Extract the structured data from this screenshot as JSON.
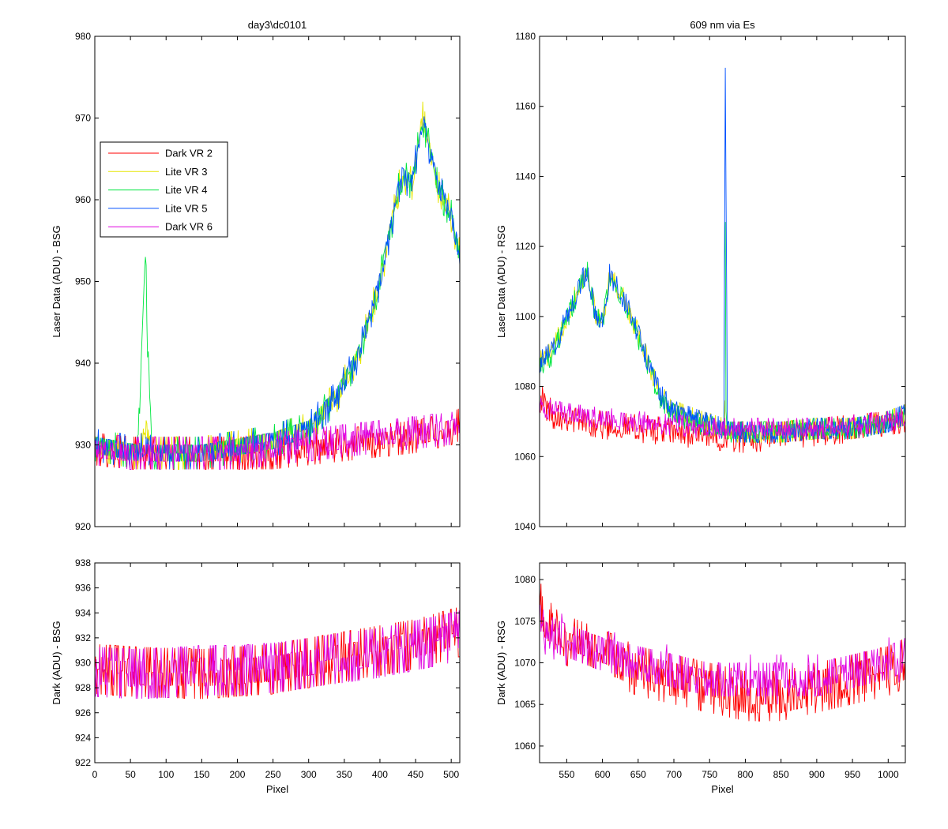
{
  "figure": {
    "colors": {
      "Dark VR 2": "#ff0000",
      "Lite VR 3": "#e6e600",
      "Lite VR 4": "#00e640",
      "Lite VR 5": "#0050ff",
      "Dark VR 6": "#e000e0"
    }
  },
  "chart_data": [
    {
      "id": "top-left",
      "type": "line",
      "title": "day3\\dc0101",
      "xlabel": "",
      "ylabel": "Laser Data (ADU) - BSG",
      "xlim": [
        0,
        512
      ],
      "ylim": [
        920,
        980
      ],
      "xticks": [
        0,
        50,
        100,
        150,
        200,
        250,
        300,
        350,
        400,
        450,
        500
      ],
      "xtick_labels_shown": false,
      "yticks": [
        920,
        930,
        940,
        950,
        960,
        970,
        980
      ],
      "legend": {
        "placement": "upper-left",
        "entries": [
          "Dark VR 2",
          "Lite VR 3",
          "Lite VR 4",
          "Lite VR 5",
          "Dark VR 6"
        ]
      },
      "series": [
        {
          "name": "Dark VR 2",
          "x": [
            0,
            50,
            100,
            150,
            200,
            250,
            300,
            350,
            400,
            450,
            500,
            512
          ],
          "y": [
            929.5,
            929,
            929,
            929,
            929,
            929,
            929.5,
            930,
            930.5,
            931,
            932,
            932.5
          ],
          "noise": 2
        },
        {
          "name": "Lite VR 3",
          "x": [
            0,
            60,
            72,
            80,
            150,
            250,
            300,
            340,
            370,
            400,
            430,
            445,
            460,
            480,
            500,
            512
          ],
          "y": [
            930,
            929,
            932,
            929,
            929,
            930.5,
            932,
            936,
            941,
            950,
            963,
            962,
            970,
            962,
            958,
            953
          ],
          "noise": 1.7
        },
        {
          "name": "Lite VR 4",
          "x": [
            0,
            60,
            71,
            72,
            73,
            80,
            150,
            250,
            300,
            340,
            370,
            400,
            430,
            445,
            460,
            480,
            500,
            512
          ],
          "y": [
            930,
            929,
            954,
            951,
            945,
            929,
            929,
            930.5,
            932,
            936,
            941,
            950,
            963,
            962,
            970,
            962,
            958,
            953
          ],
          "noise": 1.7
        },
        {
          "name": "Lite VR 5",
          "x": [
            0,
            60,
            72,
            80,
            150,
            250,
            300,
            340,
            370,
            400,
            430,
            445,
            460,
            480,
            500,
            512
          ],
          "y": [
            930,
            929,
            930,
            929,
            929,
            930.5,
            932,
            936,
            941,
            950,
            963,
            962,
            970,
            962,
            958,
            953
          ],
          "noise": 1.7
        },
        {
          "name": "Dark VR 6",
          "x": [
            0,
            50,
            100,
            150,
            200,
            250,
            300,
            350,
            400,
            450,
            500,
            512
          ],
          "y": [
            929.5,
            929,
            929,
            929,
            929,
            929.5,
            930,
            930.5,
            931,
            931.5,
            932,
            932.5
          ],
          "noise": 2
        }
      ]
    },
    {
      "id": "top-right",
      "type": "line",
      "title": "609 nm via Es",
      "xlabel": "",
      "ylabel": "Laser Data (ADU) - RSG",
      "xlim": [
        512,
        1024
      ],
      "ylim": [
        1040,
        1180
      ],
      "xticks": [
        550,
        600,
        650,
        700,
        750,
        800,
        850,
        900,
        950,
        1000
      ],
      "xtick_labels_shown": false,
      "yticks": [
        1040,
        1060,
        1080,
        1100,
        1120,
        1140,
        1160,
        1180
      ],
      "series": [
        {
          "name": "Dark VR 2",
          "x": [
            512,
            530,
            560,
            600,
            650,
            700,
            750,
            800,
            850,
            900,
            950,
            1000,
            1024
          ],
          "y": [
            1077,
            1072,
            1071,
            1069,
            1068,
            1067,
            1066,
            1065,
            1066,
            1067,
            1068,
            1069,
            1070
          ],
          "noise": 4
        },
        {
          "name": "Lite VR 3",
          "x": [
            512,
            530,
            550,
            570,
            580,
            590,
            600,
            610,
            630,
            650,
            680,
            700,
            740,
            770,
            771,
            772,
            773,
            775,
            800,
            850,
            900,
            950,
            1000,
            1024
          ],
          "y": [
            1087,
            1090,
            1100,
            1110,
            1114,
            1100,
            1098,
            1112,
            1105,
            1095,
            1078,
            1073,
            1070,
            1068,
            1075,
            1070,
            1068,
            1067,
            1067,
            1067,
            1068,
            1068,
            1070,
            1072
          ],
          "noise": 3.5
        },
        {
          "name": "Lite VR 4",
          "x": [
            512,
            530,
            550,
            570,
            580,
            590,
            600,
            610,
            630,
            650,
            680,
            700,
            740,
            770,
            771,
            772,
            773,
            775,
            800,
            850,
            900,
            950,
            1000,
            1024
          ],
          "y": [
            1086,
            1089,
            1099,
            1109,
            1113,
            1100,
            1098,
            1111,
            1104,
            1094,
            1077,
            1072,
            1069,
            1068,
            1118,
            1128,
            1070,
            1067,
            1067,
            1067,
            1068,
            1068,
            1070,
            1072
          ],
          "noise": 3.5
        },
        {
          "name": "Lite VR 5",
          "x": [
            512,
            530,
            550,
            570,
            580,
            590,
            600,
            610,
            630,
            650,
            680,
            700,
            740,
            770,
            771,
            772,
            773,
            775,
            800,
            850,
            900,
            950,
            1000,
            1024
          ],
          "y": [
            1087,
            1090,
            1100,
            1110,
            1113,
            1100,
            1098,
            1112,
            1105,
            1095,
            1078,
            1073,
            1070,
            1068,
            1125,
            1170,
            1137,
            1067,
            1067,
            1067,
            1068,
            1068,
            1070,
            1072
          ],
          "noise": 3.5
        },
        {
          "name": "Dark VR 6",
          "x": [
            512,
            530,
            560,
            600,
            650,
            700,
            750,
            800,
            850,
            900,
            950,
            1000,
            1024
          ],
          "y": [
            1075,
            1073,
            1072,
            1071,
            1070,
            1069,
            1068,
            1068,
            1068,
            1068,
            1069,
            1070,
            1071
          ],
          "noise": 3
        }
      ]
    },
    {
      "id": "bottom-left",
      "type": "line",
      "title": "",
      "xlabel": "Pixel",
      "ylabel": "Dark (ADU) - BSG",
      "xlim": [
        0,
        512
      ],
      "ylim": [
        922,
        938
      ],
      "xticks": [
        0,
        50,
        100,
        150,
        200,
        250,
        300,
        350,
        400,
        450,
        500
      ],
      "xtick_labels_shown": true,
      "yticks": [
        922,
        924,
        926,
        928,
        930,
        932,
        934,
        936,
        938
      ],
      "series": [
        {
          "name": "Dark VR 2",
          "x": [
            0,
            50,
            100,
            150,
            200,
            250,
            300,
            350,
            400,
            450,
            500,
            512
          ],
          "y": [
            929.5,
            929.3,
            929.2,
            929.1,
            929.3,
            929.5,
            930,
            930.5,
            931,
            931.5,
            932.3,
            932.5
          ],
          "noise": 2.3
        },
        {
          "name": "Dark VR 6",
          "x": [
            0,
            50,
            100,
            150,
            200,
            250,
            300,
            350,
            400,
            450,
            500,
            512
          ],
          "y": [
            929.3,
            929.1,
            929.2,
            929.4,
            929.4,
            929.6,
            930,
            930.4,
            930.8,
            931.4,
            932,
            932.2
          ],
          "noise": 2.3
        }
      ]
    },
    {
      "id": "bottom-right",
      "type": "line",
      "title": "",
      "xlabel": "Pixel",
      "ylabel": "Dark (ADU) - RSG",
      "xlim": [
        512,
        1024
      ],
      "ylim": [
        1058,
        1082
      ],
      "xticks": [
        550,
        600,
        650,
        700,
        750,
        800,
        850,
        900,
        950,
        1000
      ],
      "xtick_labels_shown": true,
      "yticks": [
        1060,
        1065,
        1070,
        1075,
        1080
      ],
      "series": [
        {
          "name": "Dark VR 2",
          "x": [
            512,
            520,
            540,
            570,
            600,
            650,
            700,
            750,
            800,
            850,
            900,
            950,
            1000,
            1024
          ],
          "y": [
            1077,
            1075,
            1073,
            1072,
            1071,
            1069,
            1068,
            1067,
            1066,
            1066,
            1067,
            1068,
            1069,
            1070
          ],
          "noise": 3
        },
        {
          "name": "Dark VR 6",
          "x": [
            512,
            520,
            540,
            570,
            600,
            650,
            700,
            750,
            800,
            850,
            900,
            950,
            1000,
            1024
          ],
          "y": [
            1075,
            1074,
            1073,
            1072,
            1071,
            1070,
            1069,
            1068,
            1068,
            1068,
            1068,
            1069,
            1070,
            1071
          ],
          "noise": 2.6
        }
      ]
    }
  ]
}
